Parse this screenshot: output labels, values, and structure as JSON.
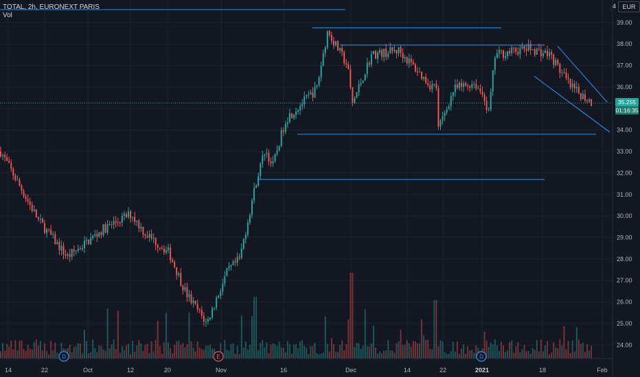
{
  "header": {
    "symbol_line": "TOTAL, 2h, EURONEXT PARIS",
    "volume_label": "Vol"
  },
  "price_scale": {
    "currency": "EUR",
    "top_label": "4",
    "labels": [
      "39.00",
      "38.00",
      "37.00",
      "36.00",
      "35.00",
      "34.00",
      "33.00",
      "32.00",
      "31.00",
      "30.00",
      "29.00",
      "28.00",
      "27.00",
      "26.00",
      "25.00",
      "24.00"
    ],
    "last_price": "35.255",
    "countdown": "01:16:35"
  },
  "time_scale": {
    "labels": [
      "14",
      "22",
      "Oct",
      "12",
      "20",
      "Nov",
      "16",
      "Dec",
      "14",
      "22",
      "2021",
      "18",
      "Feb"
    ]
  },
  "events": [
    {
      "label": "D"
    },
    {
      "label": "E"
    },
    {
      "label": "D"
    }
  ],
  "colors": {
    "background": "#131722",
    "up": "#26a69a",
    "down": "#ef5350",
    "trendline": "#2196f3",
    "grid": "#1e222d",
    "price_tag": "#26a69a"
  },
  "chart_data": {
    "type": "candlestick",
    "title": "TOTAL, 2h, EURONEXT PARIS",
    "currency": "EUR",
    "ylim": [
      23.5,
      39.6
    ],
    "x": [
      "14",
      "22",
      "Oct",
      "12",
      "20",
      "Nov",
      "16",
      "Dec",
      "14",
      "22",
      "2021",
      "18",
      "Feb"
    ],
    "close_path": [
      {
        "x": "14",
        "y": 33.0
      },
      {
        "x": "22",
        "y": 29.8
      },
      {
        "x": "22",
        "y": 28.1
      },
      {
        "x": "Oct",
        "y": 28.6
      },
      {
        "x": "Oct",
        "y": 29.4
      },
      {
        "x": "12",
        "y": 30.1
      },
      {
        "x": "12",
        "y": 29.2
      },
      {
        "x": "20",
        "y": 28.3
      },
      {
        "x": "20",
        "y": 26.4
      },
      {
        "x": "20",
        "y": 25.0
      },
      {
        "x": "Nov",
        "y": 27.4
      },
      {
        "x": "Nov",
        "y": 28.0
      },
      {
        "x": "Nov",
        "y": 31.6
      },
      {
        "x": "16",
        "y": 33.1
      },
      {
        "x": "16",
        "y": 32.3
      },
      {
        "x": "16",
        "y": 34.5
      },
      {
        "x": "16",
        "y": 35.9
      },
      {
        "x": "Dec",
        "y": 38.6
      },
      {
        "x": "Dec",
        "y": 37.0
      },
      {
        "x": "Dec",
        "y": 35.2
      },
      {
        "x": "Dec",
        "y": 37.5
      },
      {
        "x": "14",
        "y": 37.7
      },
      {
        "x": "14",
        "y": 36.1
      },
      {
        "x": "22",
        "y": 36.0
      },
      {
        "x": "22",
        "y": 34.0
      },
      {
        "x": "22",
        "y": 35.9
      },
      {
        "x": "22",
        "y": 36.2
      },
      {
        "x": "2021",
        "y": 35.5
      },
      {
        "x": "2021",
        "y": 34.6
      },
      {
        "x": "2021",
        "y": 37.5
      },
      {
        "x": "18",
        "y": 37.8
      },
      {
        "x": "18",
        "y": 37.5
      },
      {
        "x": "18",
        "y": 36.0
      },
      {
        "x": "Feb",
        "y": 35.255
      }
    ],
    "horizontal_levels": [
      38.75,
      37.95,
      33.8,
      31.7
    ],
    "channel_lines": [
      {
        "from": {
          "x": "18",
          "y": 37.9
        },
        "to": {
          "x": "Feb",
          "y": 35.3
        }
      },
      {
        "from": {
          "x": "18",
          "y": 36.5
        },
        "to": {
          "x": "Feb",
          "y": 33.9
        }
      }
    ],
    "volume_series": "Vol",
    "last": 35.255
  }
}
